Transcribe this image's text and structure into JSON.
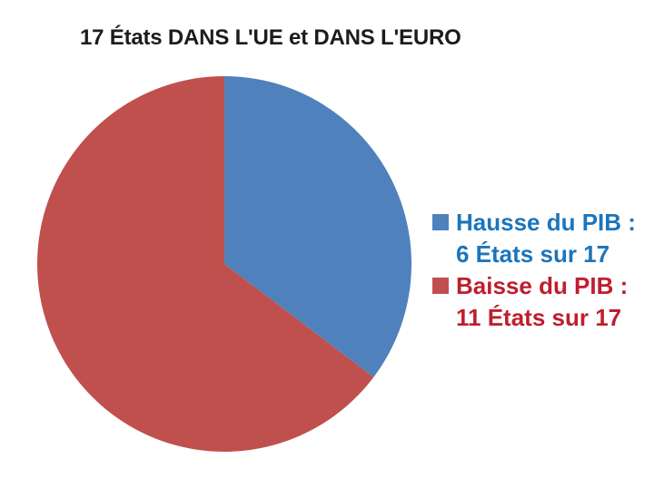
{
  "title": {
    "text": "17 États DANS L'UE et DANS L'EURO",
    "color": "#1c1c1c"
  },
  "chart_data": {
    "type": "pie",
    "title": "17 États DANS L'UE et DANS L'EURO",
    "categories": [
      "Hausse du PIB",
      "Baisse du PIB"
    ],
    "values": [
      6,
      11
    ],
    "total": 17,
    "colors": [
      "#4F81BD",
      "#C0504D"
    ],
    "start_angle_deg": 0,
    "direction": "clockwise",
    "legend_position": "right",
    "slice_labels": [
      "Hausse du PIB : 6 États sur 17",
      "Baisse du PIB : 11 États sur 17"
    ]
  },
  "legend": {
    "items": [
      {
        "line1": "Hausse du PIB :",
        "line2": "6 États sur 17",
        "swatch_color": "#4F81BD",
        "text_color": "#1B75BC"
      },
      {
        "line1": "Baisse du PIB :",
        "line2": "11 États sur 17",
        "swatch_color": "#C0504D",
        "text_color": "#BE1E2D"
      }
    ]
  }
}
